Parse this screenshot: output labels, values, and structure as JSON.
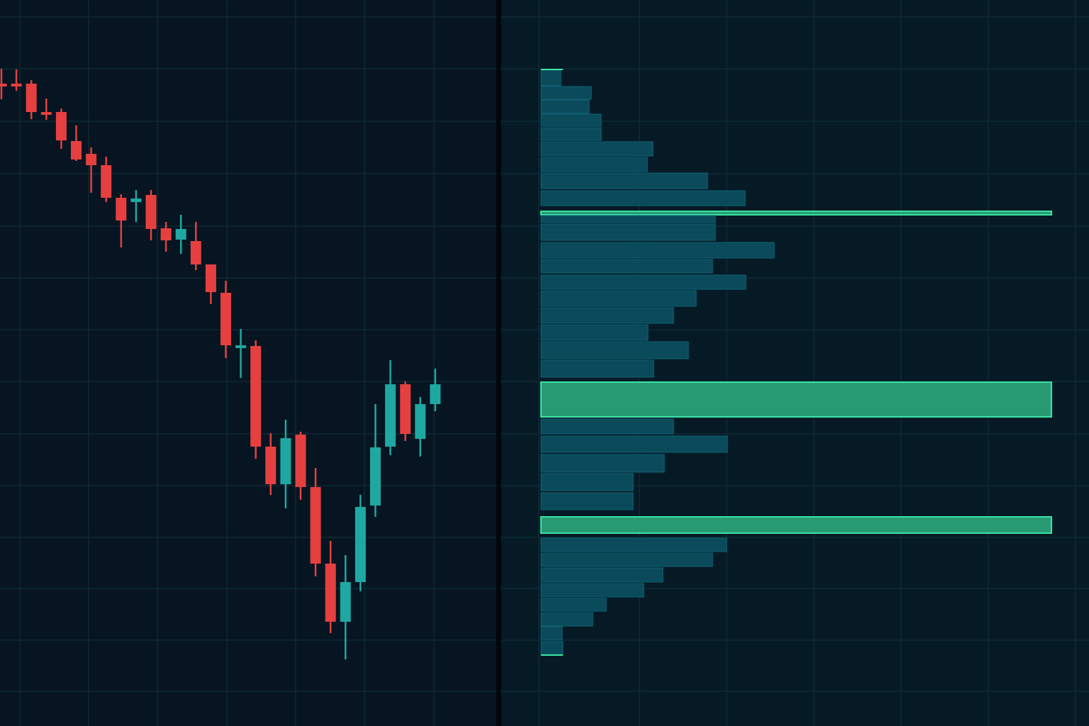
{
  "colors": {
    "background_left": "#061521",
    "background_right": "#061a26",
    "grid": "#0d2a36",
    "divider": "#02070b",
    "bearish": "#e5403f",
    "bullish": "#1fa8a2",
    "profile_bar": "#0a4a5b",
    "profile_bar_border": "#0f6274",
    "profile_highlight": "#279a74",
    "profile_highlight_border": "#3ae3a3"
  },
  "chart_data": [
    {
      "type": "candlestick",
      "title": "",
      "grid": true,
      "price_scale_note_unprinted": false,
      "candles": [
        {
          "open": 882,
          "high": 903,
          "low": 860,
          "close": 878
        },
        {
          "open": 882,
          "high": 902,
          "low": 872,
          "close": 878
        },
        {
          "open": 882,
          "high": 887,
          "low": 832,
          "close": 842
        },
        {
          "open": 842,
          "high": 861,
          "low": 831,
          "close": 838
        },
        {
          "open": 842,
          "high": 847,
          "low": 790,
          "close": 802
        },
        {
          "open": 801,
          "high": 823,
          "low": 773,
          "close": 775
        },
        {
          "open": 783,
          "high": 792,
          "low": 728,
          "close": 767
        },
        {
          "open": 767,
          "high": 779,
          "low": 715,
          "close": 721
        },
        {
          "open": 721,
          "high": 726,
          "low": 651,
          "close": 689
        },
        {
          "open": 715,
          "high": 732,
          "low": 687,
          "close": 720
        },
        {
          "open": 725,
          "high": 732,
          "low": 661,
          "close": 677
        },
        {
          "open": 678,
          "high": 687,
          "low": 645,
          "close": 661
        },
        {
          "open": 662,
          "high": 697,
          "low": 642,
          "close": 677
        },
        {
          "open": 660,
          "high": 687,
          "low": 619,
          "close": 627
        },
        {
          "open": 627,
          "high": 627,
          "low": 571,
          "close": 588
        },
        {
          "open": 587,
          "high": 604,
          "low": 495,
          "close": 513
        },
        {
          "open": 510,
          "high": 536,
          "low": 467,
          "close": 513
        },
        {
          "open": 512,
          "high": 520,
          "low": 353,
          "close": 370
        },
        {
          "open": 370,
          "high": 389,
          "low": 302,
          "close": 317
        },
        {
          "open": 317,
          "high": 408,
          "low": 283,
          "close": 382
        },
        {
          "open": 387,
          "high": 391,
          "low": 295,
          "close": 313
        },
        {
          "open": 313,
          "high": 340,
          "low": 187,
          "close": 205
        },
        {
          "open": 205,
          "high": 237,
          "low": 107,
          "close": 123
        },
        {
          "open": 123,
          "high": 217,
          "low": 70,
          "close": 179
        },
        {
          "open": 179,
          "high": 302,
          "low": 166,
          "close": 285
        },
        {
          "open": 287,
          "high": 430,
          "low": 271,
          "close": 369
        },
        {
          "open": 370,
          "high": 492,
          "low": 358,
          "close": 458
        },
        {
          "open": 458,
          "high": 462,
          "low": 378,
          "close": 388
        },
        {
          "open": 381,
          "high": 440,
          "low": 356,
          "close": 430
        },
        {
          "open": 430,
          "high": 480,
          "low": 420,
          "close": 458
        }
      ]
    },
    {
      "type": "volume-profile",
      "title": "",
      "bars": [
        {
          "low": 879,
          "high": 901,
          "volume": 28
        },
        {
          "low": 860,
          "high": 878,
          "volume": 71
        },
        {
          "low": 840,
          "high": 859,
          "volume": 68
        },
        {
          "low": 822,
          "high": 839,
          "volume": 85
        },
        {
          "low": 802,
          "high": 820,
          "volume": 85
        },
        {
          "low": 780,
          "high": 800,
          "volume": 158
        },
        {
          "low": 758,
          "high": 778,
          "volume": 150
        },
        {
          "low": 734,
          "high": 756,
          "volume": 235
        },
        {
          "low": 710,
          "high": 731,
          "volume": 288
        },
        {
          "low": 697,
          "high": 702,
          "volume": 720,
          "highlight": true
        },
        {
          "low": 686,
          "high": 696,
          "volume": 246
        },
        {
          "low": 661,
          "high": 684,
          "volume": 246
        },
        {
          "low": 636,
          "high": 658,
          "volume": 329
        },
        {
          "low": 615,
          "high": 634,
          "volume": 242
        },
        {
          "low": 592,
          "high": 612,
          "volume": 289
        },
        {
          "low": 568,
          "high": 590,
          "volume": 219
        },
        {
          "low": 544,
          "high": 566,
          "volume": 187
        },
        {
          "low": 520,
          "high": 542,
          "volume": 151
        },
        {
          "low": 494,
          "high": 518,
          "volume": 208
        },
        {
          "low": 468,
          "high": 492,
          "volume": 159
        },
        {
          "low": 412,
          "high": 461,
          "volume": 720,
          "highlight": true
        },
        {
          "low": 388,
          "high": 409,
          "volume": 187
        },
        {
          "low": 362,
          "high": 385,
          "volume": 263
        },
        {
          "low": 334,
          "high": 359,
          "volume": 174
        },
        {
          "low": 308,
          "high": 332,
          "volume": 130
        },
        {
          "low": 281,
          "high": 305,
          "volume": 130
        },
        {
          "low": 248,
          "high": 271,
          "volume": 720,
          "highlight": true
        },
        {
          "low": 222,
          "high": 241,
          "volume": 262
        },
        {
          "low": 201,
          "high": 220,
          "volume": 242
        },
        {
          "low": 179,
          "high": 199,
          "volume": 172
        },
        {
          "low": 158,
          "high": 177,
          "volume": 145
        },
        {
          "low": 138,
          "high": 156,
          "volume": 92
        },
        {
          "low": 117,
          "high": 136,
          "volume": 73
        },
        {
          "low": 97,
          "high": 116,
          "volume": 30
        },
        {
          "low": 77,
          "high": 95,
          "volume": 31
        }
      ]
    }
  ]
}
